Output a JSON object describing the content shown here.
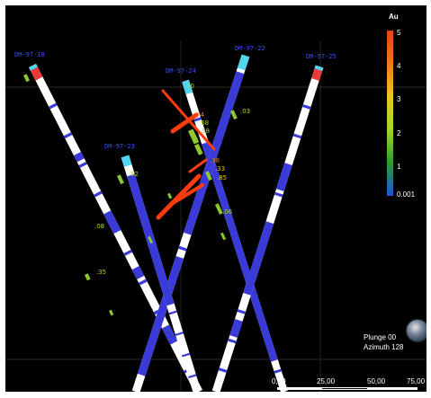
{
  "legend": {
    "title": "Au",
    "ticks": [
      "5",
      "4",
      "3",
      "2",
      "1",
      "0.001"
    ]
  },
  "holes": [
    {
      "label": "DM-97-18"
    },
    {
      "label": "DM-97-24"
    },
    {
      "label": "DM-97-22"
    },
    {
      "label": "DM-97-23"
    },
    {
      "label": "DM-97-25"
    }
  ],
  "assay_labels": [
    {
      "text": "52",
      "color": "#a8d636"
    },
    {
      "text": "10",
      "color": "#a8d636"
    },
    {
      "text": ".03",
      "color": "#a8d636"
    },
    {
      "text": ".74",
      "color": "#f07a18"
    },
    {
      "text": ".68",
      "color": "#a8d636"
    },
    {
      "text": ".58",
      "color": "#a8d636"
    },
    {
      "text": ".38",
      "color": "#f07a18"
    },
    {
      "text": ".33",
      "color": "#e8c81e"
    },
    {
      "text": ".85",
      "color": "#e8c81e"
    },
    {
      "text": ".06",
      "color": "#a8d636"
    },
    {
      "text": ".08",
      "color": "#a8d636"
    },
    {
      "text": ".35",
      "color": "#a8d636"
    }
  ],
  "orientation": {
    "plunge": "Plunge 00",
    "azimuth": "Azimuth 128"
  },
  "scale": {
    "labels": [
      "0,00",
      "25,00",
      "50,00",
      "75,00"
    ]
  },
  "colors": {
    "background": "#000000",
    "hole_body": "#ffffff",
    "hole_interval": "#3a3ad8",
    "high_grade": "#ff3b10",
    "collar_top": "#e83a3a",
    "collar_cyan": "#4fd6ee"
  }
}
